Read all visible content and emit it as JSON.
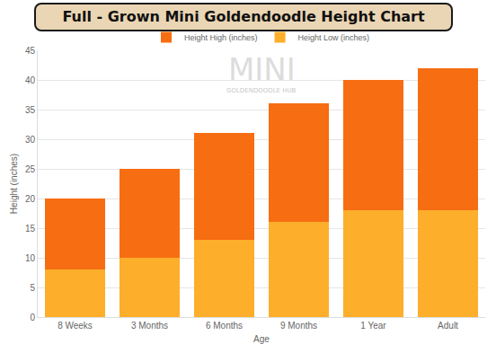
{
  "chart_data": {
    "type": "bar",
    "title": "Full - Grown Mini Goldendoodle Height Chart",
    "x_label": "Age",
    "y_label": "Height (inches)",
    "categories": [
      "8 Weeks",
      "3 Months",
      "6 Months",
      "9 Months",
      "1 Year",
      "Adult"
    ],
    "series": [
      {
        "name": "Height Low (inches)",
        "color": "#fdae2b",
        "values": [
          8,
          10,
          13,
          16,
          18,
          18
        ]
      },
      {
        "name": "Height High (inches)",
        "color": "#f76d12",
        "values": [
          12,
          15,
          18,
          20,
          22,
          24
        ]
      }
    ],
    "stacked": true,
    "ylim": [
      0,
      45
    ],
    "yticks": [
      0,
      5,
      10,
      15,
      20,
      25,
      30,
      35,
      40,
      45
    ],
    "grid": true,
    "legend": "top",
    "annotations": [
      "MINI",
      "GOLDENDOODLE HUB"
    ]
  }
}
